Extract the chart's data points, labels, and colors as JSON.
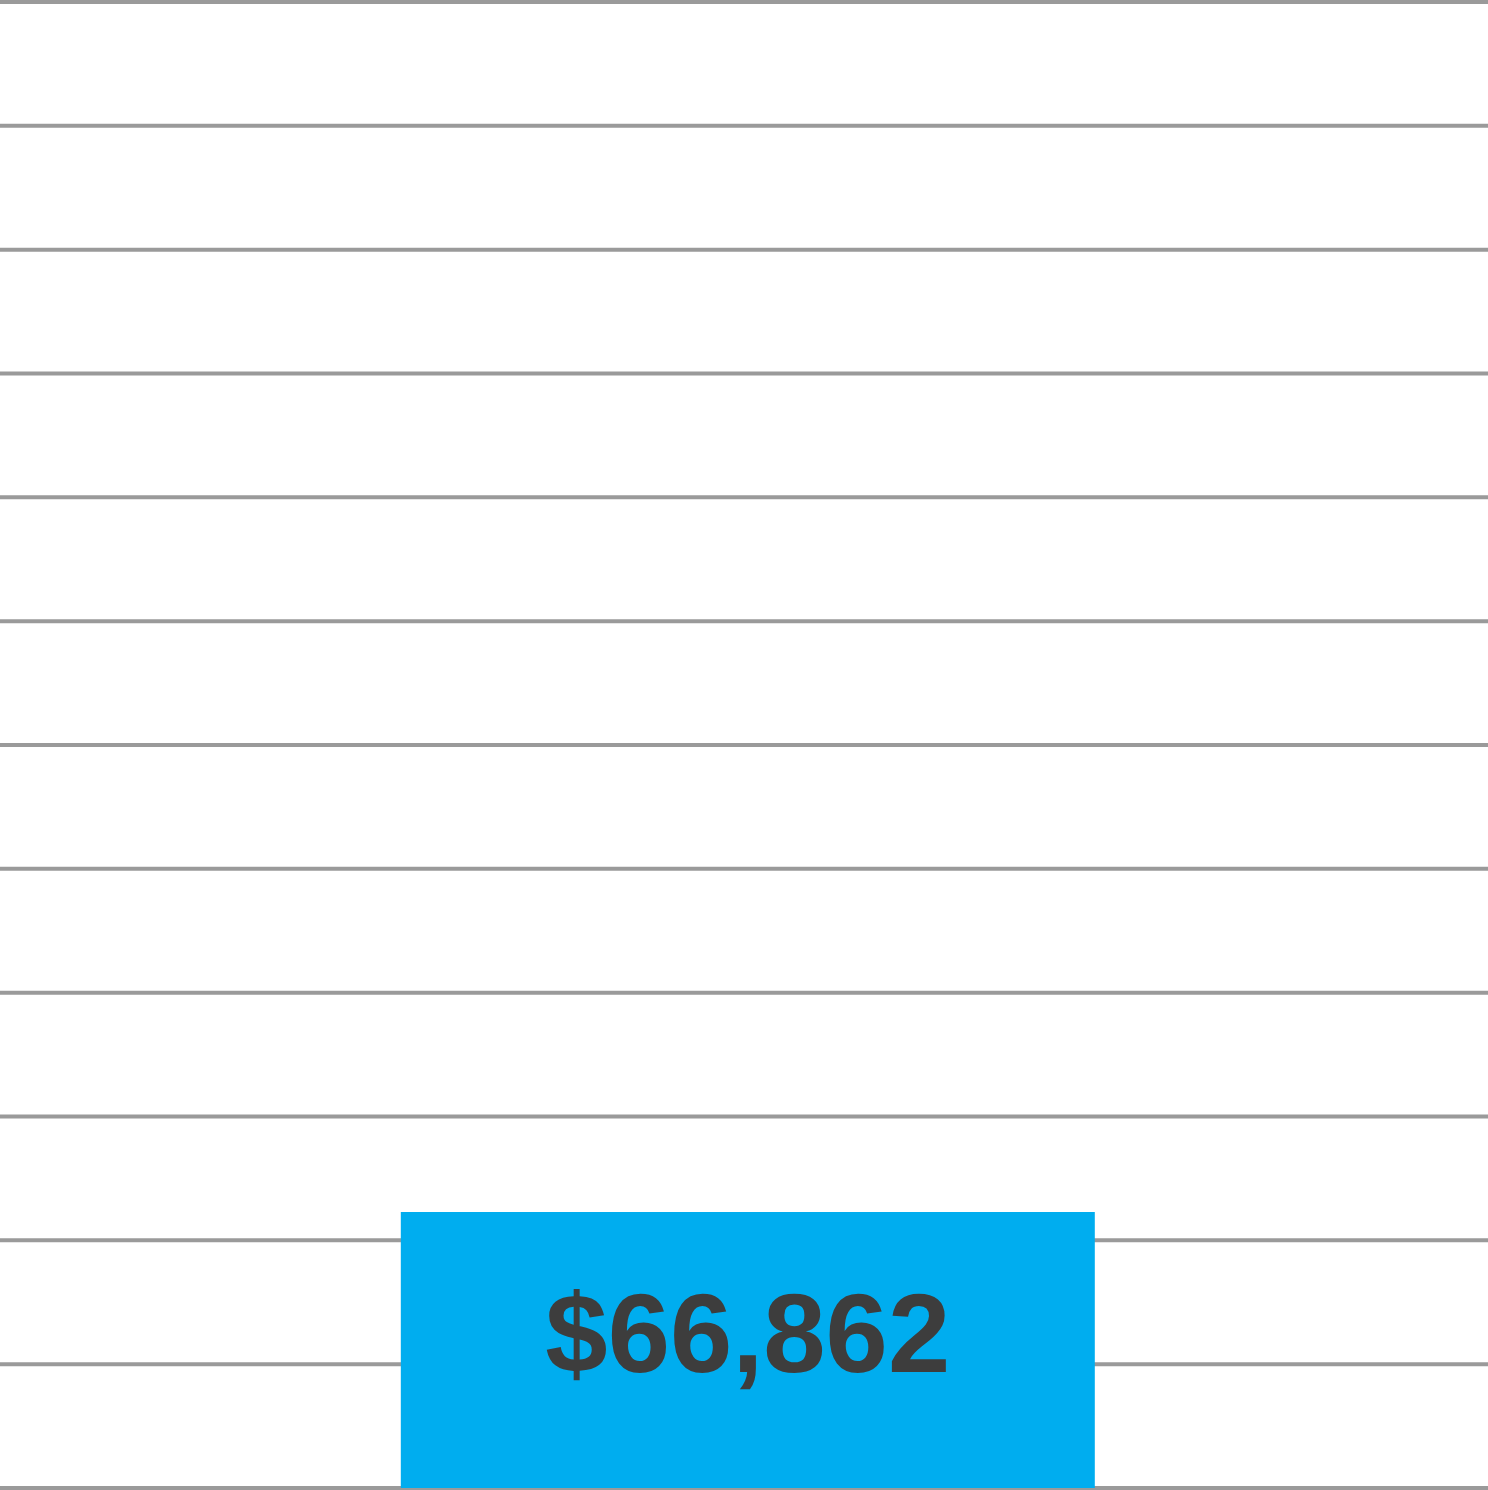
{
  "chart_data": {
    "type": "bar",
    "categories": [
      null
    ],
    "values": [
      66862
    ],
    "value_labels": [
      "$66,862"
    ],
    "color": "#00adef",
    "grid": true,
    "ylim": [
      0,
      360000
    ],
    "yticks": [
      {
        "value": 0,
        "label": null
      },
      {
        "value": 30000,
        "label": null
      },
      {
        "value": 60000,
        "label": null
      },
      {
        "value": 90000,
        "label": null
      },
      {
        "value": 120000,
        "label": null
      },
      {
        "value": 150000,
        "label": null
      },
      {
        "value": 180000,
        "label": null
      },
      {
        "value": 210000,
        "label": null
      },
      {
        "value": 240000,
        "label": null
      },
      {
        "value": 270000,
        "label": null
      },
      {
        "value": 300000,
        "label": null
      },
      {
        "value": 330000,
        "label": null
      },
      {
        "value": 360000,
        "label": null
      }
    ]
  }
}
